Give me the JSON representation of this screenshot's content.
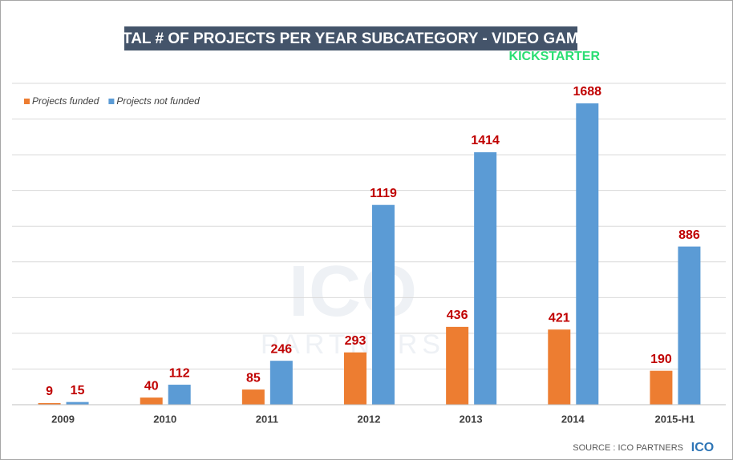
{
  "chart_data": {
    "type": "bar",
    "title": "TOTAL # OF PROJECTS PER YEAR SUBCATEGORY - VIDEO GAMES",
    "logo": "KICKSTARTER",
    "watermark": [
      "ICO",
      "PARTNERS"
    ],
    "source": "SOURCE : ICO PARTNERS",
    "source_logo": "ICO",
    "categories": [
      "2009",
      "2010",
      "2011",
      "2012",
      "2013",
      "2014",
      "2015-H1"
    ],
    "series": [
      {
        "name": "Projects funded",
        "color": "#ed7d31",
        "values": [
          9,
          40,
          85,
          293,
          436,
          421,
          190
        ]
      },
      {
        "name": "Projects not funded",
        "color": "#5b9bd5",
        "values": [
          15,
          112,
          246,
          1119,
          1414,
          1688,
          886
        ]
      }
    ],
    "ylim": [
      0,
      1800
    ],
    "yticks": [
      0,
      200,
      400,
      600,
      800,
      1000,
      1200,
      1400,
      1600,
      1800
    ],
    "ytick_labels": false,
    "grid": true,
    "legend": "top-left",
    "value_label_color": "#c00000"
  }
}
